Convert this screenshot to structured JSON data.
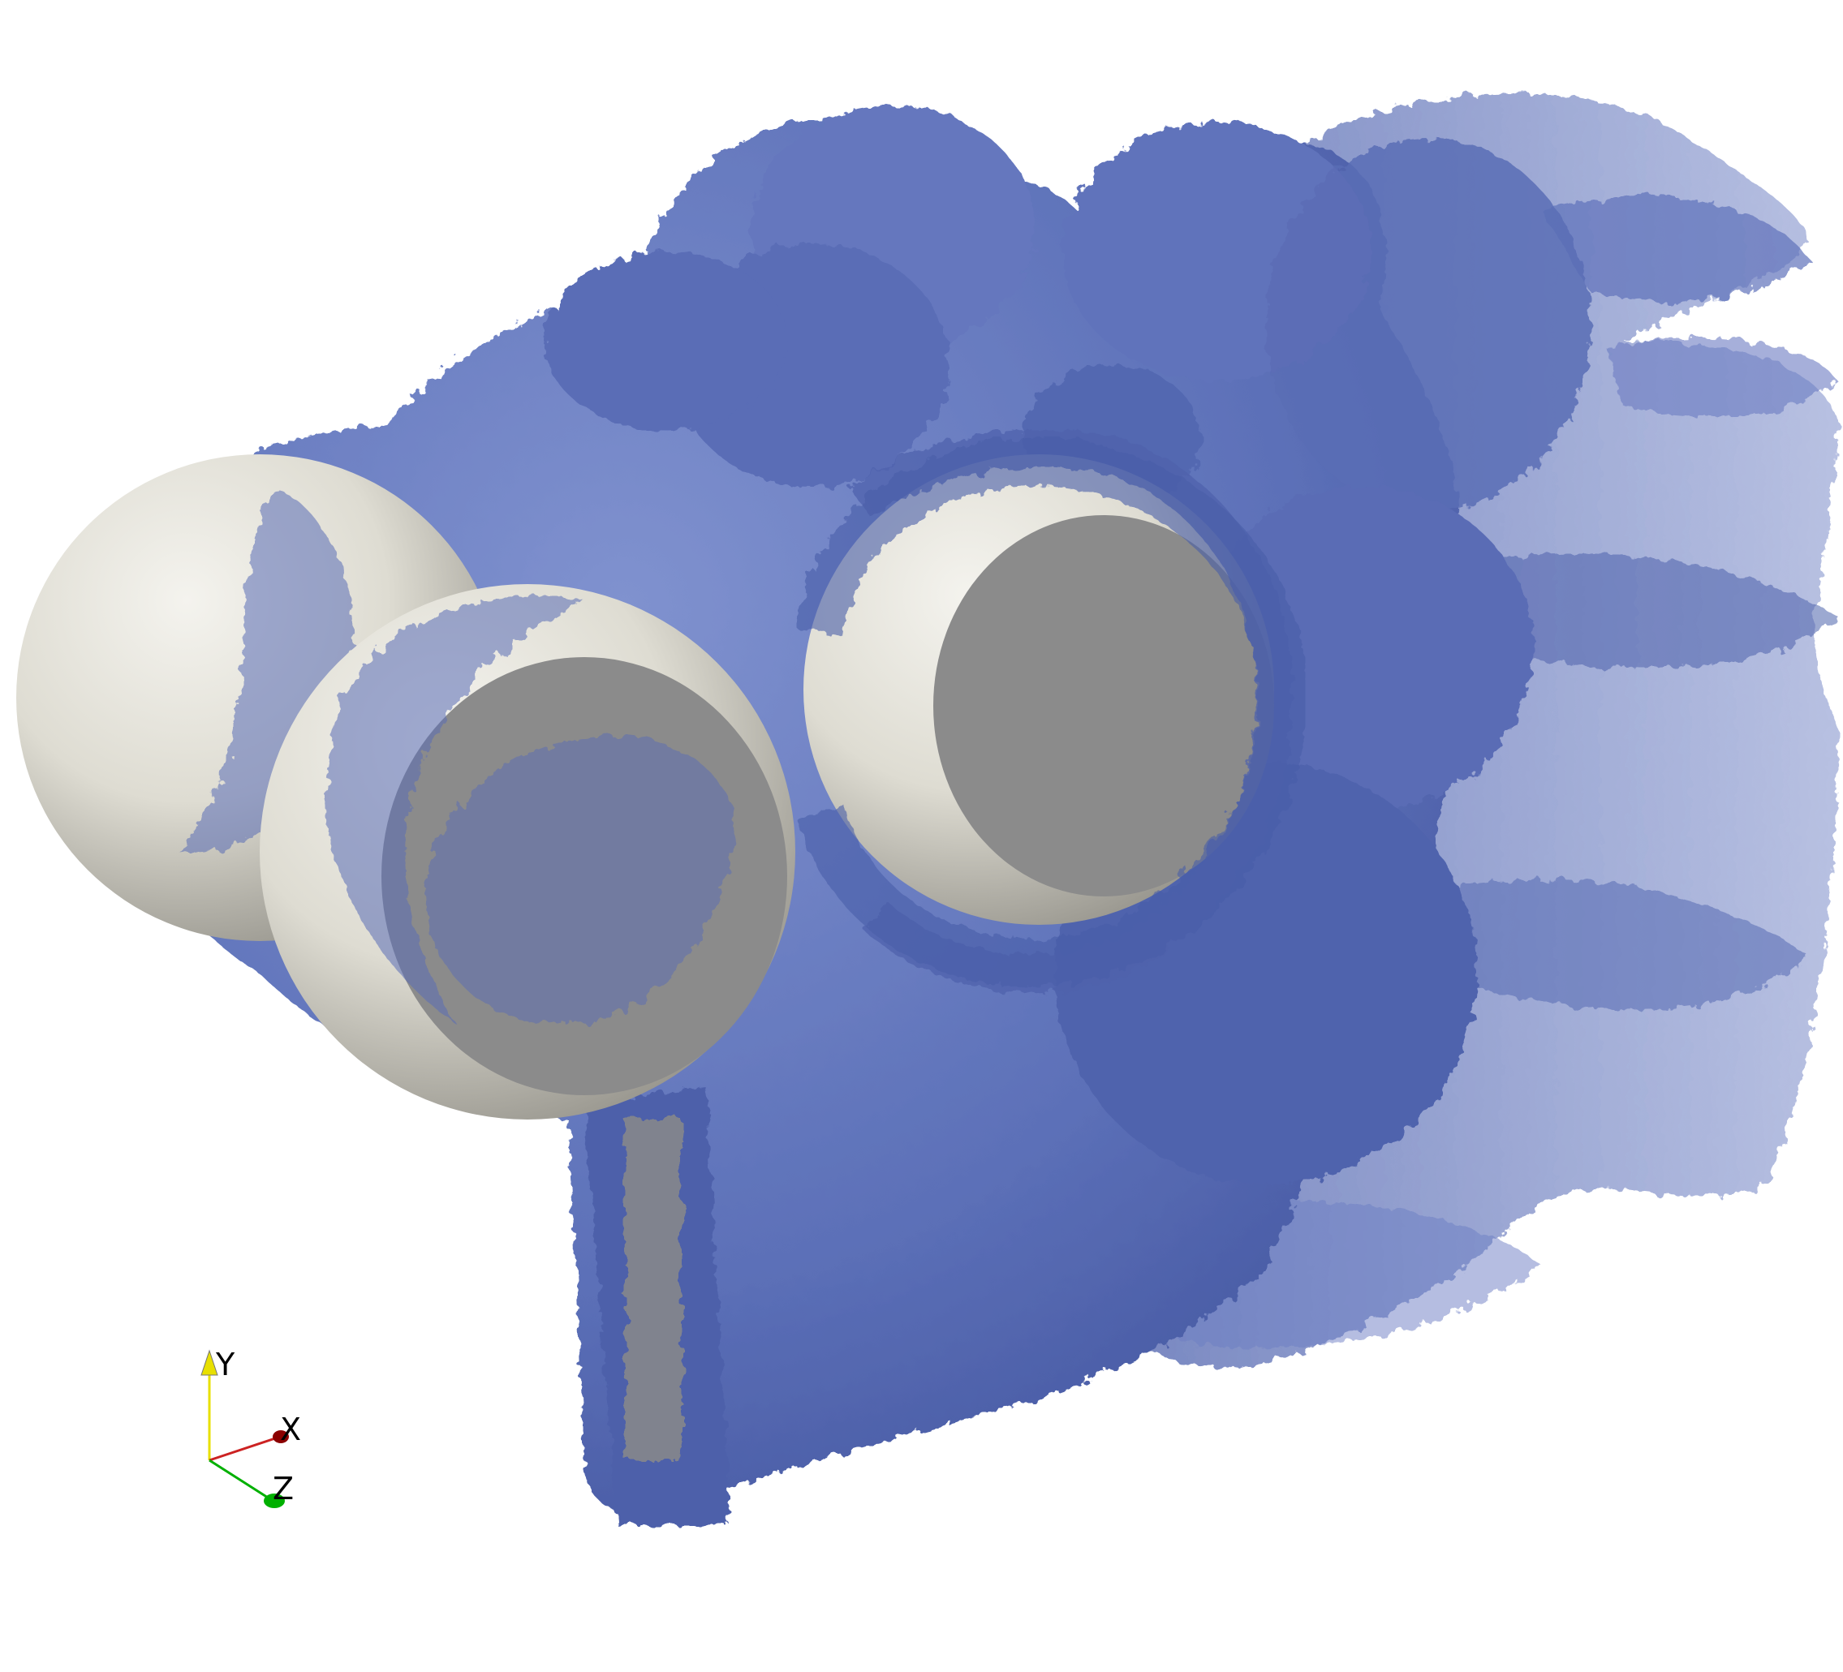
{
  "scene": {
    "background_color": "#ffffff",
    "isosurface_color": "#5b70b8",
    "isosurface_dark_color": "#3d4f99",
    "sphere_color": "#e6e4dc",
    "sphere_shadow_color": "#8a8a8a"
  },
  "orientation_axes": {
    "y_label": "Y",
    "x_label": "X",
    "z_label": "Z",
    "y_color": "#e8e000",
    "x_color": "#8b0000",
    "z_color": "#00b000"
  }
}
